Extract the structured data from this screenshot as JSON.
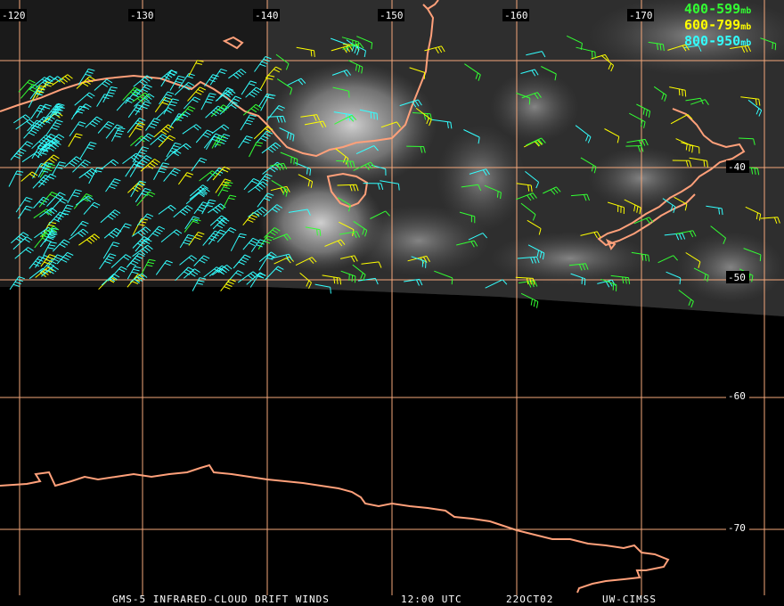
{
  "longitude_labels": [
    "-120",
    "-130",
    "-140",
    "-150",
    "-160",
    "-170"
  ],
  "latitude_labels": [
    "-40",
    "-50",
    "-60",
    "-70"
  ],
  "legend": [
    {
      "text": "400-599",
      "unit": "mb",
      "color": "#33ff33"
    },
    {
      "text": "600-799",
      "unit": "mb",
      "color": "#ffff00"
    },
    {
      "text": "800-950",
      "unit": "mb",
      "color": "#33ffff"
    }
  ],
  "footer": {
    "product": "GMS-5 INFRARED-CLOUD DRIFT WINDS",
    "time": "12:00 UTC",
    "date": "22OCT02",
    "source": "UW-CIMSS"
  },
  "colors": {
    "grid": "#f4a77a",
    "coast": "#ffa07a",
    "background": "#000000",
    "cloud_image": "#3a3a3a"
  }
}
